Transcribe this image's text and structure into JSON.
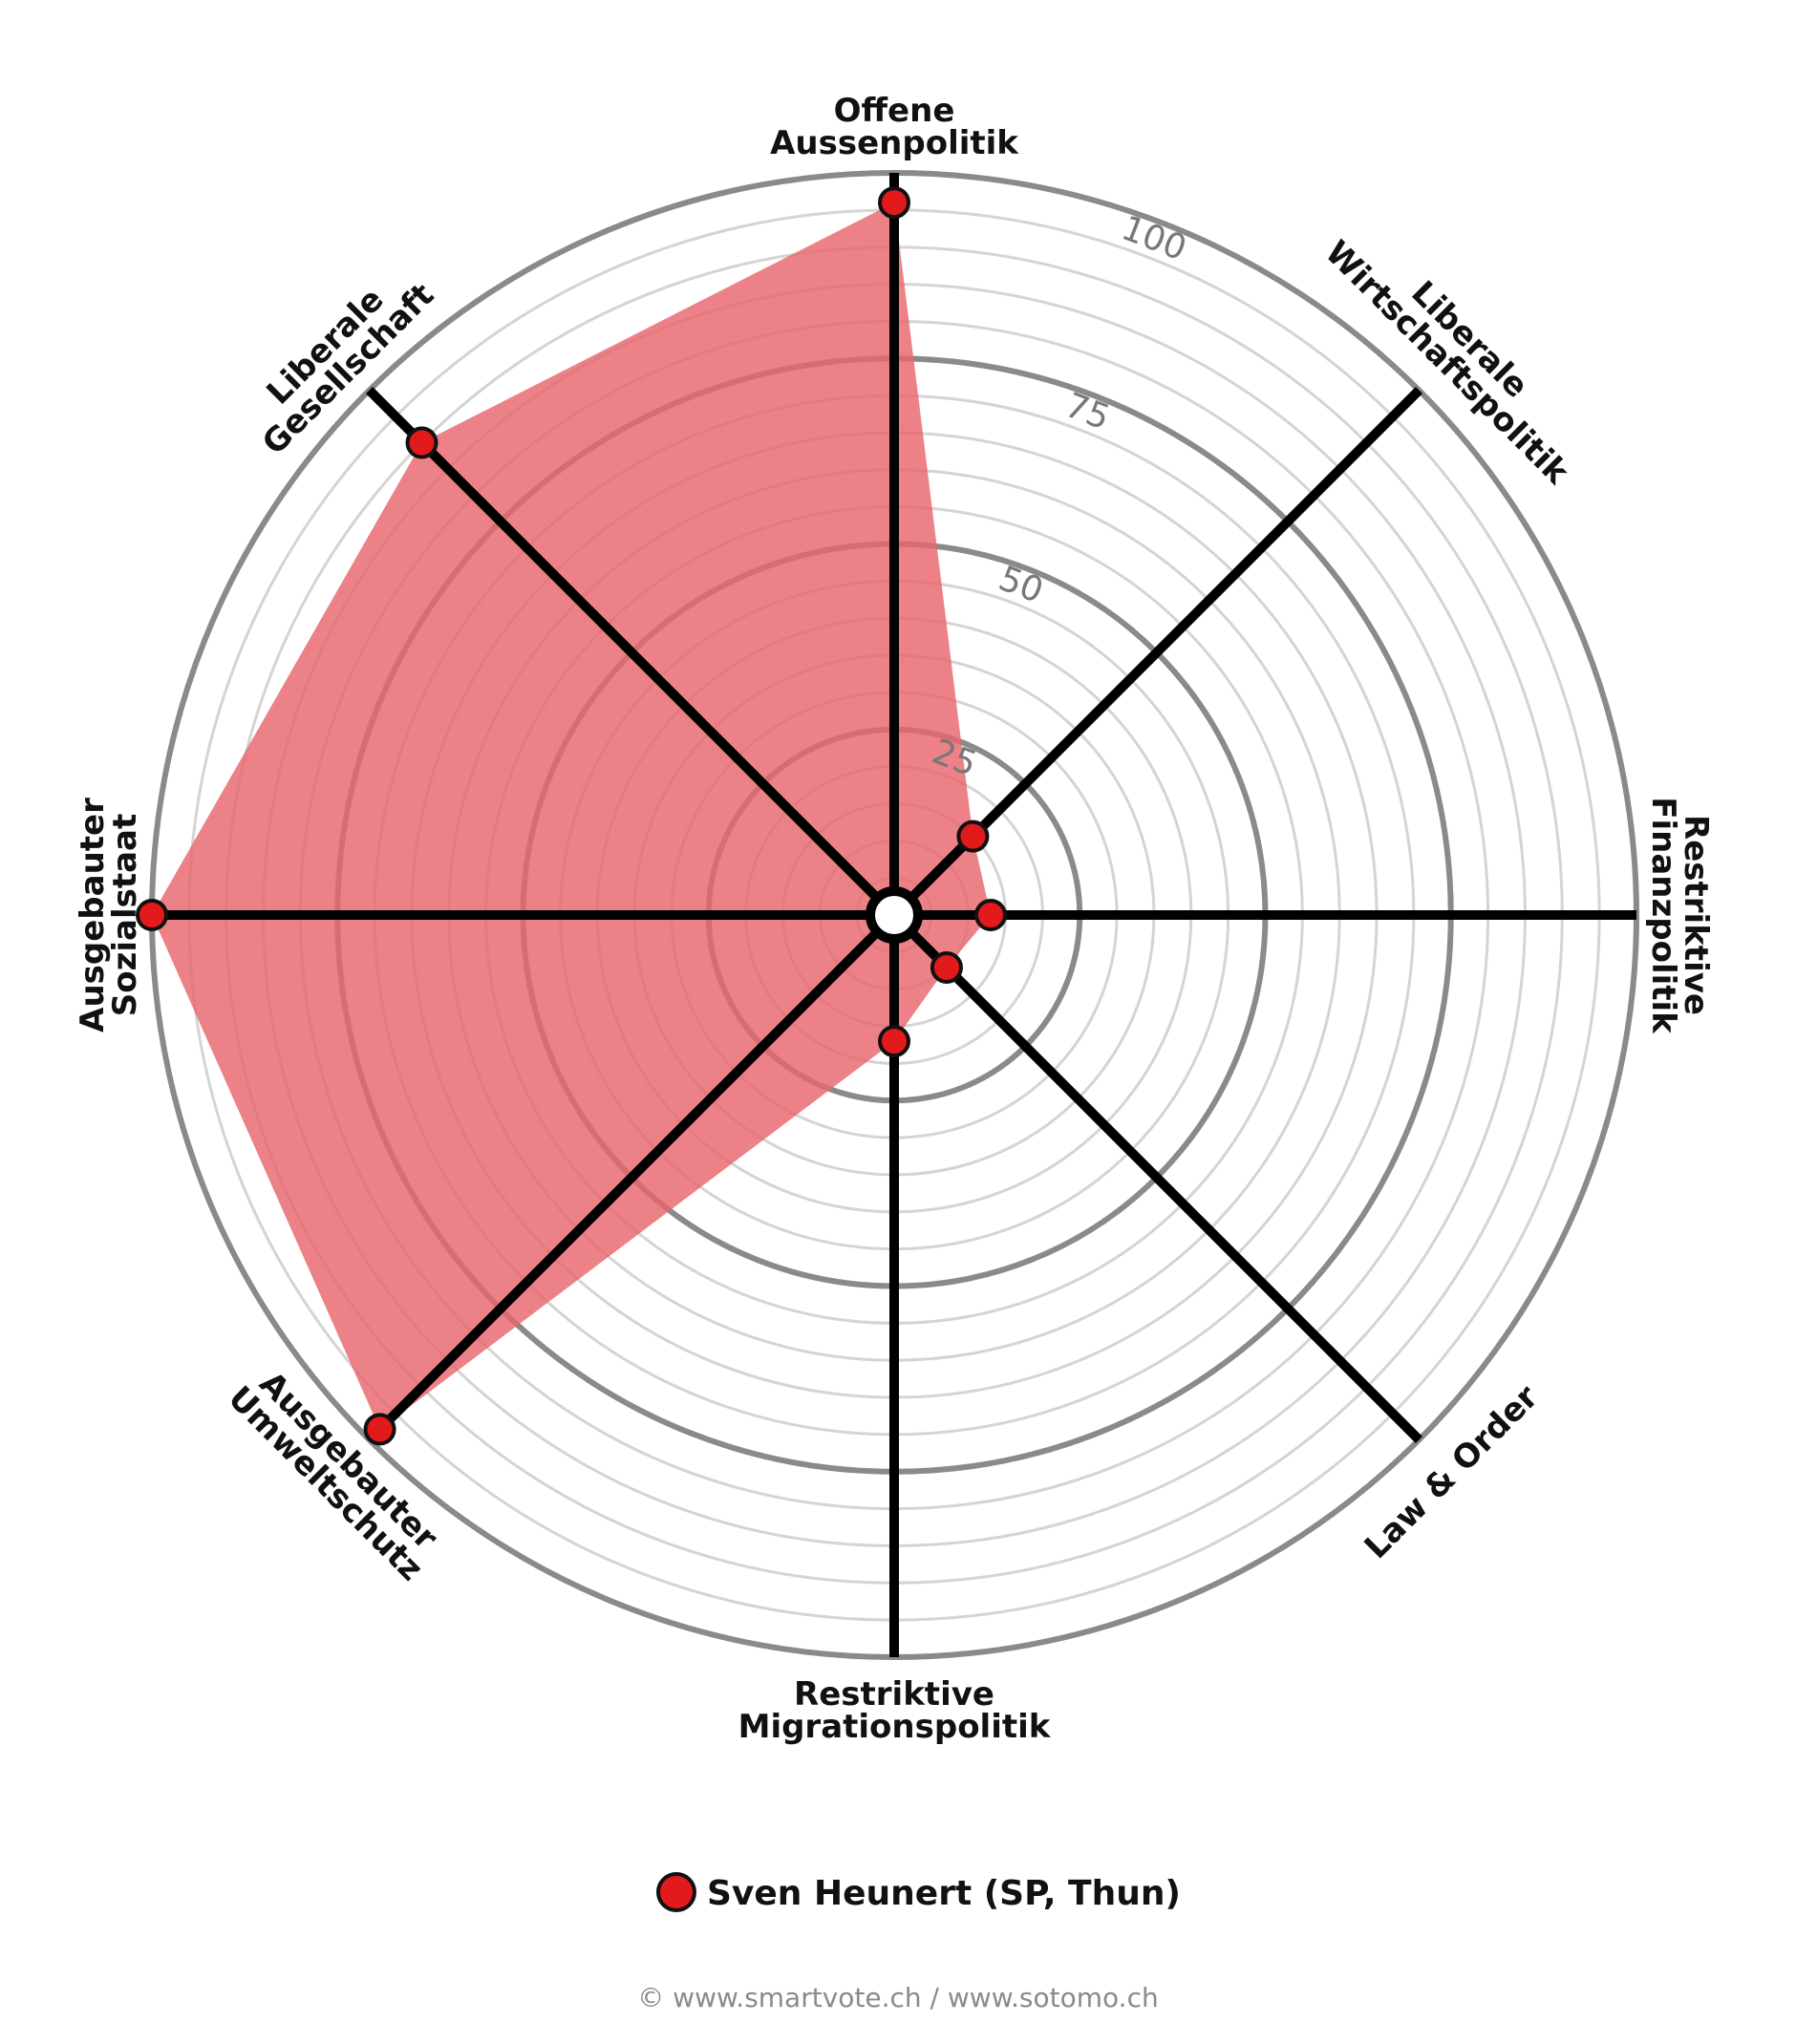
{
  "chart_data": {
    "type": "radar",
    "title": "",
    "axes": [
      {
        "label": [
          "Offene",
          "Aussenpolitik"
        ],
        "value": 96
      },
      {
        "label": [
          "Liberale",
          "Wirtschaftspolitik"
        ],
        "value": 15
      },
      {
        "label": [
          "Restriktive",
          "Finanzpolitik"
        ],
        "value": 13
      },
      {
        "label": [
          "Law & Order"
        ],
        "value": 10
      },
      {
        "label": [
          "Restriktive",
          "Migrationspolitik"
        ],
        "value": 17
      },
      {
        "label": [
          "Ausgebauter",
          "Umweltschutz"
        ],
        "value": 98
      },
      {
        "label": [
          "Ausgebauter",
          "Sozialstaat"
        ],
        "value": 100
      },
      {
        "label": [
          "Liberale",
          "Gesellschaft"
        ],
        "value": 90
      }
    ],
    "range": [
      0,
      100
    ],
    "ring_step": 5,
    "major_rings": [
      25,
      50,
      75,
      100
    ],
    "tick_labels": [
      "25",
      "50",
      "75",
      "100"
    ],
    "series": [
      {
        "name": "Sven Heunert (SP, Thun)",
        "color": "#e31a1c",
        "fill": "#e8676d"
      }
    ]
  },
  "credit": "© www.smartvote.ch / www.sotomo.ch"
}
